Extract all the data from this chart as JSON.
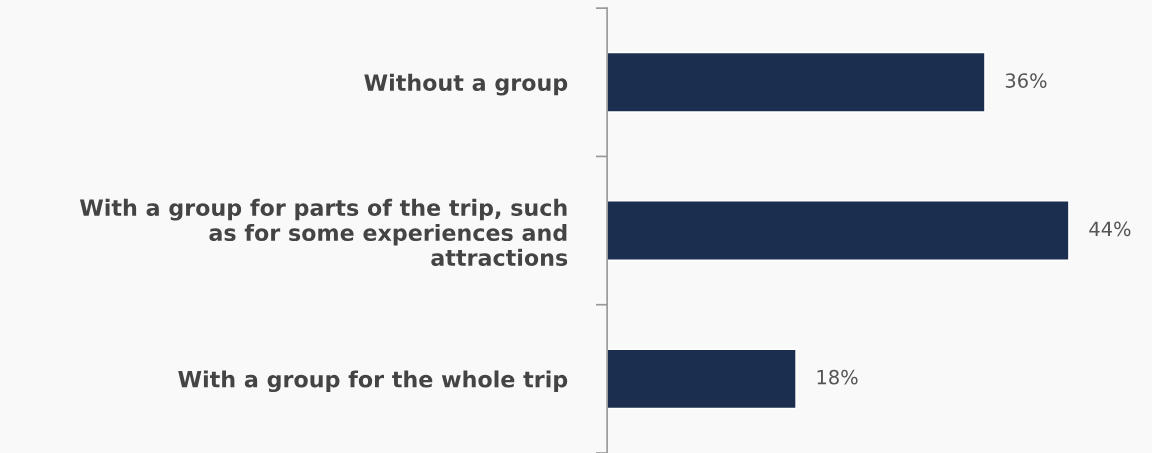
{
  "chart_data": {
    "type": "bar",
    "orientation": "horizontal",
    "categories": [
      "Without a group",
      "With a group for parts of the trip, such\nas for some experiences and\nattractions",
      "With a group for the whole trip"
    ],
    "values": [
      36,
      44,
      18
    ],
    "color": "#1b2e4f",
    "value_labels": [
      "36%",
      "44%",
      "18%"
    ],
    "grid": false,
    "legend": false
  }
}
